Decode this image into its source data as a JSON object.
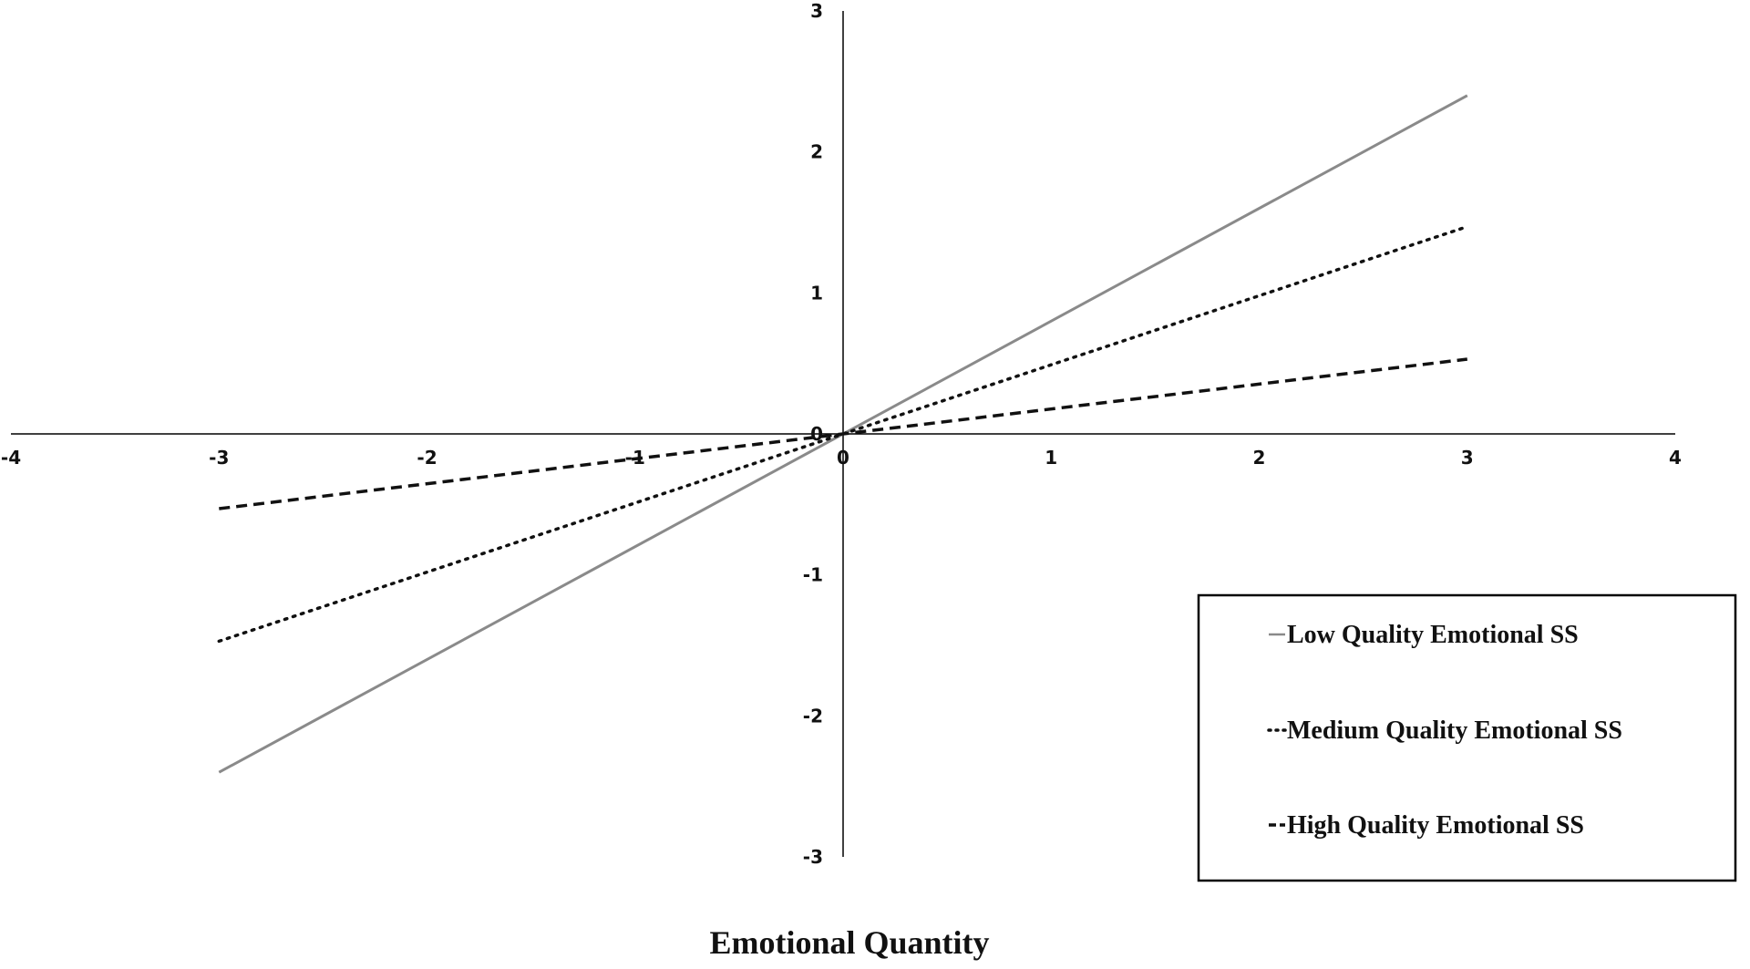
{
  "chart_data": {
    "type": "line",
    "title": "",
    "xlabel": "Emotional Quantity",
    "ylabel": "",
    "xlim": [
      -4,
      4
    ],
    "ylim": [
      -3,
      3
    ],
    "x_ticks": [
      "-4",
      "-3",
      "-2",
      "-1",
      "0",
      "1",
      "2",
      "3",
      "4"
    ],
    "y_ticks": [
      "-3",
      "-2",
      "-1",
      "0",
      "1",
      "2",
      "3"
    ],
    "grid": false,
    "legend_position": "bottom-right",
    "series": [
      {
        "name": "Low Quality Emotional SS",
        "style": "solid",
        "color": "#8a8a8a",
        "x": [
          -3,
          3
        ],
        "y": [
          -2.4,
          2.4
        ]
      },
      {
        "name": "Medium Quality Emotional SS",
        "style": "dotted",
        "color": "#111111",
        "x": [
          -3,
          3
        ],
        "y": [
          -1.47,
          1.47
        ]
      },
      {
        "name": "High Quality Emotional SS",
        "style": "dashed",
        "color": "#111111",
        "x": [
          -3,
          3
        ],
        "y": [
          -0.53,
          0.53
        ]
      }
    ]
  }
}
